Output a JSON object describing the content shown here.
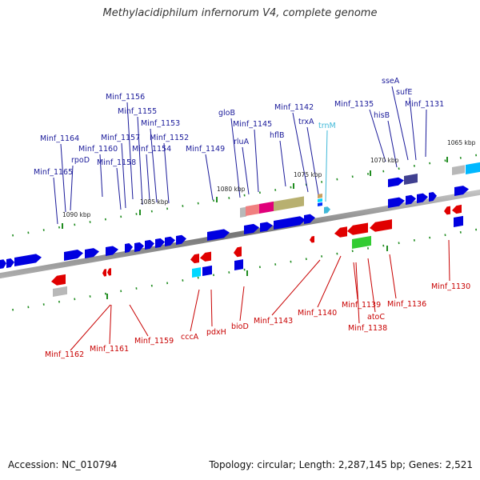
{
  "title": "Methylacidiphilum infernorum V4, complete genome",
  "footer": {
    "accession": "Accession: NC_010794",
    "summary": "Topology: circular; Length: 2,287,145 bp; Genes: 2,521"
  },
  "colors": {
    "forward_gene": "#0000e0",
    "reverse_gene": "#e00000",
    "forward_label": "#1a1a9a",
    "reverse_label": "#c80000",
    "rna_label": "#3fb8d8",
    "backbone": "#8a8a8a",
    "tick": "#1f8c1f"
  },
  "ticks": [
    "1090 kbp",
    "1085 kbp",
    "1080 kbp",
    "1075 kbp",
    "1070 kbp",
    "1065 kbp"
  ],
  "top_labels": [
    "Minf_1165",
    "rpoD",
    "Minf_1164",
    "Minf_1160",
    "Minf_1158",
    "Minf_1157",
    "Minf_1156",
    "Minf_1155",
    "Minf_1153",
    "Minf_1152",
    "Minf_1154",
    "Minf_1149",
    "gloB",
    "Minf_1145",
    "rluA",
    "hflB",
    "Minf_1142",
    "trxA",
    "trnM",
    "Minf_1135",
    "hisB",
    "sseA",
    "sufE",
    "Minf_1131"
  ],
  "bottom_labels": [
    "Minf_1162",
    "Minf_1161",
    "Minf_1159",
    "cccA",
    "pdxH",
    "bioD",
    "Minf_1143",
    "Minf_1140",
    "Minf_1139",
    "atoC",
    "Minf_1138",
    "Minf_1136",
    "Minf_1130"
  ]
}
